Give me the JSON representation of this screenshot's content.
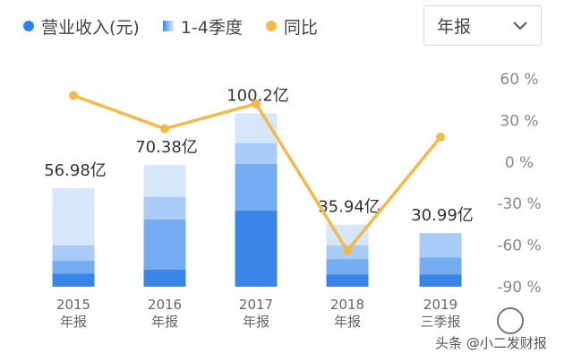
{
  "legend": {
    "revenue": "营业收入(元)",
    "quarters": "1-4季度",
    "yoy": "同比"
  },
  "selector": {
    "value": "年报",
    "icon": "chevron-down-icon"
  },
  "colors": {
    "q1": "#3a86e8",
    "q2": "#74adf2",
    "q3": "#a9cbf7",
    "q4": "#d6e6fb",
    "yoy_line": "#f3b94a",
    "revenue_dot": "#2f80ed"
  },
  "watermark": "头条 @小二发财报",
  "chart_data": {
    "type": "bar",
    "categories": [
      {
        "line1": "2015",
        "line2": "年报"
      },
      {
        "line1": "2016",
        "line2": "年报"
      },
      {
        "line1": "2017",
        "line2": "年报"
      },
      {
        "line1": "2018",
        "line2": "年报"
      },
      {
        "line1": "2019",
        "line2": "三季报"
      }
    ],
    "stacks": [
      [
        7.5,
        7.5,
        9.0,
        32.98
      ],
      [
        10.0,
        29.0,
        13.0,
        18.38
      ],
      [
        44.0,
        27.0,
        12.0,
        17.2
      ],
      [
        7.0,
        9.0,
        8.0,
        11.94
      ],
      [
        7.0,
        10.0,
        13.99
      ]
    ],
    "totals": [
      56.98,
      70.38,
      100.2,
      35.94,
      30.99
    ],
    "total_labels": [
      "56.98亿",
      "70.38亿",
      "100.2亿",
      "35.94亿",
      "30.99亿"
    ],
    "yoy": [
      48,
      24,
      42,
      -64,
      18
    ],
    "y2_ticks": [
      "60 %",
      "30 %",
      "0 %",
      "-30 %",
      "-60 %",
      "-90 %"
    ],
    "y2_values": [
      60,
      30,
      0,
      -30,
      -60,
      -90
    ],
    "ylim_revenue": [
      0,
      120
    ],
    "ylim_yoy": [
      -90,
      60
    ]
  }
}
